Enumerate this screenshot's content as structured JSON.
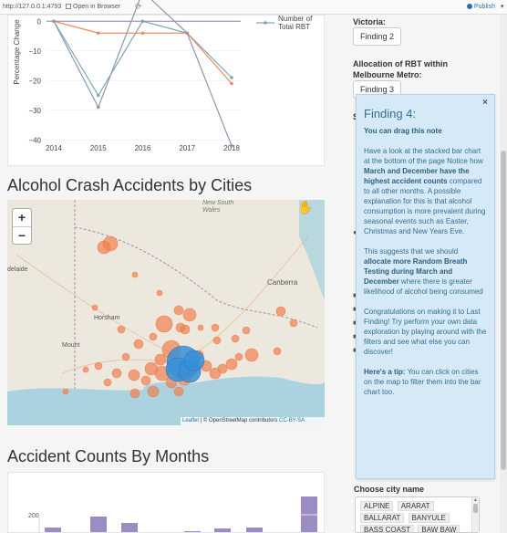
{
  "browser": {
    "url": "http://127.0.0.1:4793",
    "open_in_browser": "Open in Browser",
    "publish": "Publish"
  },
  "line_chart": {
    "ylabel": "Percentage Change",
    "yticks": [
      "0",
      "−10",
      "−20",
      "−30",
      "−40"
    ],
    "xticks": [
      "2014",
      "2015",
      "2016",
      "2017",
      "2018"
    ],
    "legend": "Number of Total RBT",
    "colors": {
      "rbt": "#7aa6b5",
      "orange": "#f08a5d",
      "grey": "#8a9aae"
    }
  },
  "chart_data": {
    "type": "line",
    "x": [
      "2014",
      "2015",
      "2016",
      "2017",
      "2018"
    ],
    "ylabel": "Percentage Change",
    "ylim": [
      -43,
      5
    ],
    "series": [
      {
        "name": "Number of Total RBT",
        "values": [
          0,
          -25,
          0,
          -4,
          -19
        ]
      },
      {
        "values": [
          0,
          -4,
          -4,
          -4,
          -21
        ]
      },
      {
        "values": [
          0,
          -29,
          10,
          -4,
          -42
        ]
      }
    ]
  },
  "map_section": {
    "title": "Alcohol Crash Accidents by Cities",
    "labels": {
      "nsw": "New South\nWales",
      "canberra": "Canberra",
      "horsham": "Horsham",
      "mount": "Mount",
      "adelaide": "delaide"
    },
    "attribution_leaflet": "Leaflet",
    "attribution_osm": "| © OpenStreetMap contributors",
    "attribution_license": "CC-BY-SA",
    "zoom_in": "+",
    "zoom_out": "−"
  },
  "months_section": {
    "title": "Accident Counts By Months",
    "ytick": "200"
  },
  "sidebar": {
    "victoria_label": "Victoria:",
    "finding2": "Finding 2",
    "allocation_label": "Allocation of RBT within Melbourne Metro:",
    "finding3": "Finding 3",
    "choose_city_label": "Choose city name",
    "cities": [
      "ALPINE",
      "ARARAT",
      "BALLARAT",
      "BANYULE",
      "BASS COAST",
      "BAW BAW"
    ]
  },
  "note": {
    "title": "Finding 4:",
    "drag": "You can drag this note",
    "p1a": "Have a look at the stacked bar chart at the bottom of the page Notice how ",
    "p1b": "March and December have the highest accident counts",
    "p1c": " compared to all other months. A possible explanation for this is that alcohol consumption is more prevalent during seasonal events such as Easter, Christmas and New Years Eve.",
    "p2a": "This suggests that we should ",
    "p2b": "allocate more Random Breath Testing during March and December",
    "p2c": " where there is greater likelihood of alcohol being consumed",
    "p3": "Congratulations on making it to Last Finding! Try perform your own data exploration by playing around with the filters and see what else you can discover!",
    "tip_a": "Here's a tip:",
    "tip_b": " You can click on cities on the map to filter them into the bar chart too."
  }
}
